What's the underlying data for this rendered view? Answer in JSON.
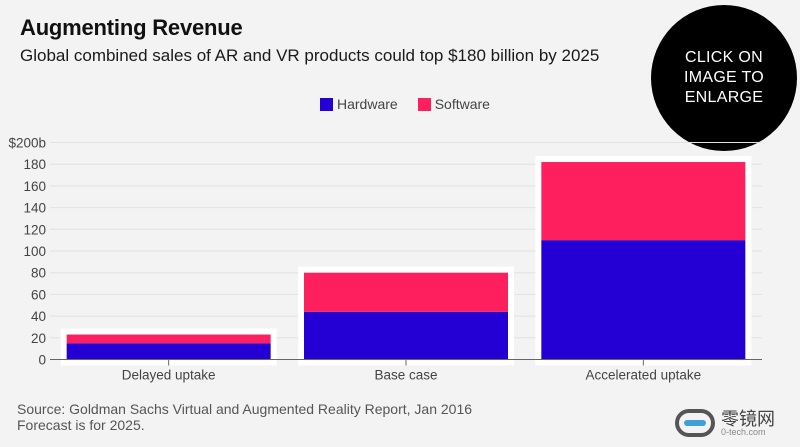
{
  "header": {
    "title": "Augmenting Revenue",
    "subtitle": "Global combined sales of AR and VR products could top $180 billion by 2025"
  },
  "badge": {
    "text": "CLICK ON IMAGE TO ENLARGE"
  },
  "footer": {
    "source": "Source: Goldman Sachs Virtual and Augmented Reality Report, Jan 2016",
    "note": "Forecast is for 2025."
  },
  "logo": {
    "cn": "零镜网",
    "en": "0-tech.com"
  },
  "chart_data": {
    "type": "bar",
    "stacked": true,
    "title": "Augmenting Revenue",
    "subtitle": "Global combined sales of AR and VR products could top $180 billion by 2025",
    "categories": [
      "Delayed uptake",
      "Base case",
      "Accelerated uptake"
    ],
    "series": [
      {
        "name": "Hardware",
        "color": "#2400d4",
        "values": [
          15,
          44,
          110
        ]
      },
      {
        "name": "Software",
        "color": "#fe1f5f",
        "values": [
          8,
          36,
          72
        ]
      }
    ],
    "yticks": [
      0,
      20,
      40,
      60,
      80,
      100,
      120,
      140,
      160,
      180,
      200
    ],
    "ytick_labels": [
      "0",
      "20",
      "40",
      "60",
      "80",
      "100",
      "120",
      "140",
      "160",
      "180",
      "$200b"
    ],
    "ylim": [
      0,
      200
    ],
    "xlabel": "",
    "ylabel": "",
    "grid": true,
    "legend": "top-center"
  }
}
